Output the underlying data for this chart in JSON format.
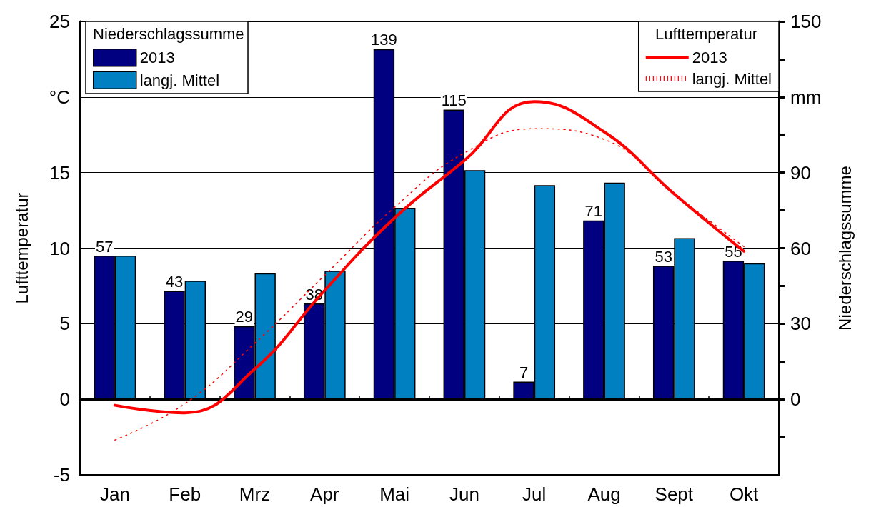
{
  "chart_data": {
    "type": "bar",
    "ylabel": "Lufttemperatur",
    "y2label": "Niederschlagssumme",
    "categories": [
      "Jan",
      "Feb",
      "Mrz",
      "Apr",
      "Mai",
      "Jun",
      "Jul",
      "Aug",
      "Sept",
      "Okt"
    ],
    "series": [
      {
        "name": "2013",
        "type": "bar",
        "axis": "y2",
        "color": "#000080",
        "values": [
          57,
          43,
          29,
          38,
          139,
          115,
          7,
          71,
          53,
          55
        ],
        "value_labels": [
          "57",
          "43",
          "29",
          "38",
          "139",
          "115",
          "7",
          "71",
          "53",
          "55"
        ]
      },
      {
        "name": "langj. Mittel",
        "type": "bar",
        "axis": "y2",
        "color": "#0080c0",
        "values": [
          57,
          47,
          50,
          51,
          76,
          91,
          85,
          86,
          64,
          54
        ]
      },
      {
        "name": "2013",
        "type": "line",
        "color": "#ff0000",
        "line_style": "solid",
        "values": [
          -0.4,
          -0.9,
          2.0,
          7.2,
          12.0,
          15.8,
          19.7,
          17.7,
          13.6,
          9.8
        ]
      },
      {
        "name": "langj. Mittel",
        "type": "line",
        "color": "#ff0000",
        "line_style": "dotted",
        "values": [
          -2.7,
          -0.3,
          3.7,
          8.2,
          12.7,
          16.3,
          17.9,
          17.2,
          13.6,
          10.1
        ]
      }
    ],
    "ylim": [
      -5,
      25
    ],
    "yticks": [
      -5,
      0,
      5,
      10,
      15,
      {
        "value": 20,
        "label": "°C"
      },
      25
    ],
    "y2lim": [
      -30,
      150
    ],
    "y2ticks": [
      {
        "value": -15,
        "label": null
      },
      0,
      {
        "value": 15,
        "label": null
      },
      30,
      {
        "value": 45,
        "label": null
      },
      60,
      {
        "value": 75,
        "label": null
      },
      90,
      {
        "value": 105,
        "label": null
      },
      {
        "value": 120,
        "label": "mm"
      },
      {
        "value": 135,
        "label": null
      },
      150
    ],
    "grid": "y",
    "marker": "none",
    "legend_title": [
      "Niederschlagssumme",
      "Lufttemperatur"
    ],
    "legend": [
      "top left",
      "top right"
    ]
  }
}
